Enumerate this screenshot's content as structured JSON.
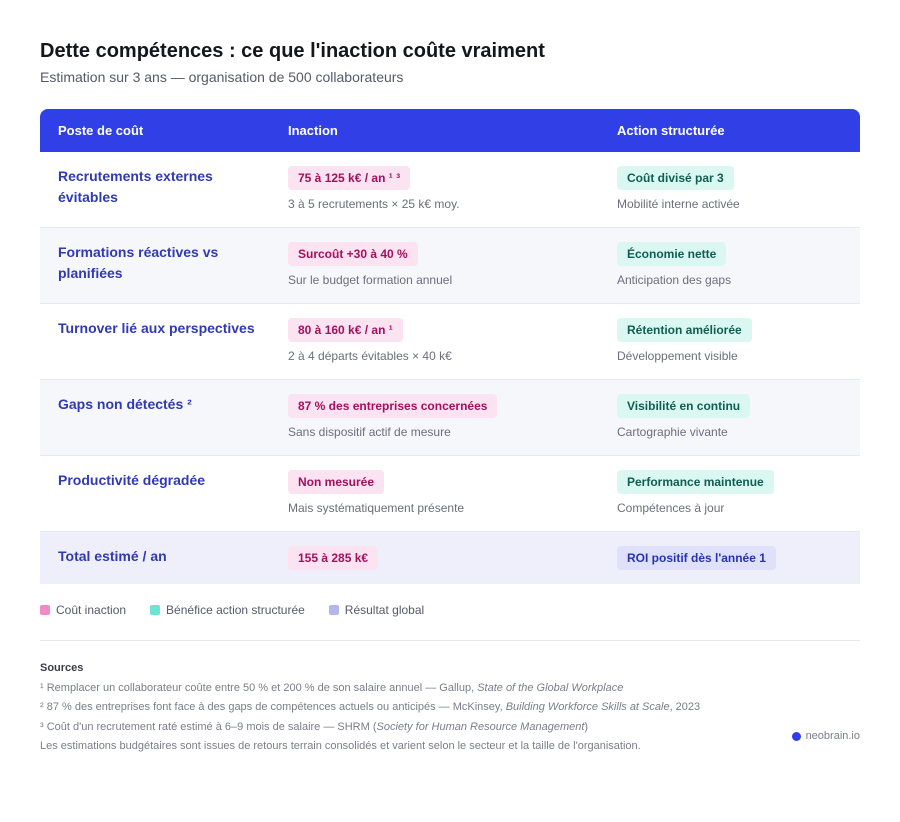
{
  "header": {
    "title": "Dette compétences : ce que l'inaction coûte vraiment",
    "subtitle": "Estimation sur 3 ans — organisation de 500 collaborateurs"
  },
  "table": {
    "columns": [
      "Poste de coût",
      "Inaction",
      "Action structurée"
    ],
    "rows": [
      {
        "label": "Recrutements externes évitables",
        "inaction_value": "75 à 125 k€ / an ¹ ³",
        "inaction_note": "3 à 5 recrutements × 25 k€ moy.",
        "action_value": "Coût divisé par 3",
        "action_note": "Mobilité interne activée"
      },
      {
        "label": "Formations réactives vs planifiées",
        "inaction_value": "Surcoût +30 à 40 %",
        "inaction_note": "Sur le budget formation annuel",
        "action_value": "Économie nette",
        "action_note": "Anticipation des gaps"
      },
      {
        "label": "Turnover lié aux perspectives",
        "inaction_value": "80 à 160 k€ / an ¹",
        "inaction_note": "2 à 4 départs évitables × 40 k€",
        "action_value": "Rétention améliorée",
        "action_note": "Développement visible"
      },
      {
        "label": "Gaps non détectés ²",
        "inaction_value": "87 % des entreprises concernées",
        "inaction_note": "Sans dispositif actif de mesure",
        "action_value": "Visibilité en continu",
        "action_note": "Cartographie vivante"
      },
      {
        "label": "Productivité dégradée",
        "inaction_value": "Non mesurée",
        "inaction_note": "Mais systématiquement présente",
        "action_value": "Performance maintenue",
        "action_note": "Compétences à jour"
      }
    ],
    "total": {
      "label": "Total estimé / an",
      "inaction_value": "155 à 285 k€",
      "action_value": "ROI positif dès l'année 1"
    }
  },
  "legend": [
    {
      "label": "Coût inaction",
      "color": "#f28ac8"
    },
    {
      "label": "Bénéfice action structurée",
      "color": "#6fe3d3"
    },
    {
      "label": "Résultat global",
      "color": "#b3b8ec"
    }
  ],
  "sources": {
    "title": "Sources",
    "items": [
      {
        "before": "¹ Remplacer un collaborateur coûte entre 50 % et 200 % de son salaire annuel — Gallup, ",
        "italic": "State of the Global Workplace",
        "after": ""
      },
      {
        "before": "² 87 % des entreprises font face à des gaps de compétences actuels ou anticipés — McKinsey, ",
        "italic": "Building Workforce Skills at Scale",
        "after": ", 2023"
      },
      {
        "before": "³ Coût d'un recrutement raté estimé à 6–9 mois de salaire — SHRM (",
        "italic": "Society for Human Resource Management",
        "after": ")"
      }
    ],
    "disclaimer": "Les estimations budgétaires sont issues de retours terrain consolidés et varient selon le secteur et la taille de l'organisation."
  },
  "brand": {
    "name": "neobrain.io",
    "color": "#3040e6"
  }
}
